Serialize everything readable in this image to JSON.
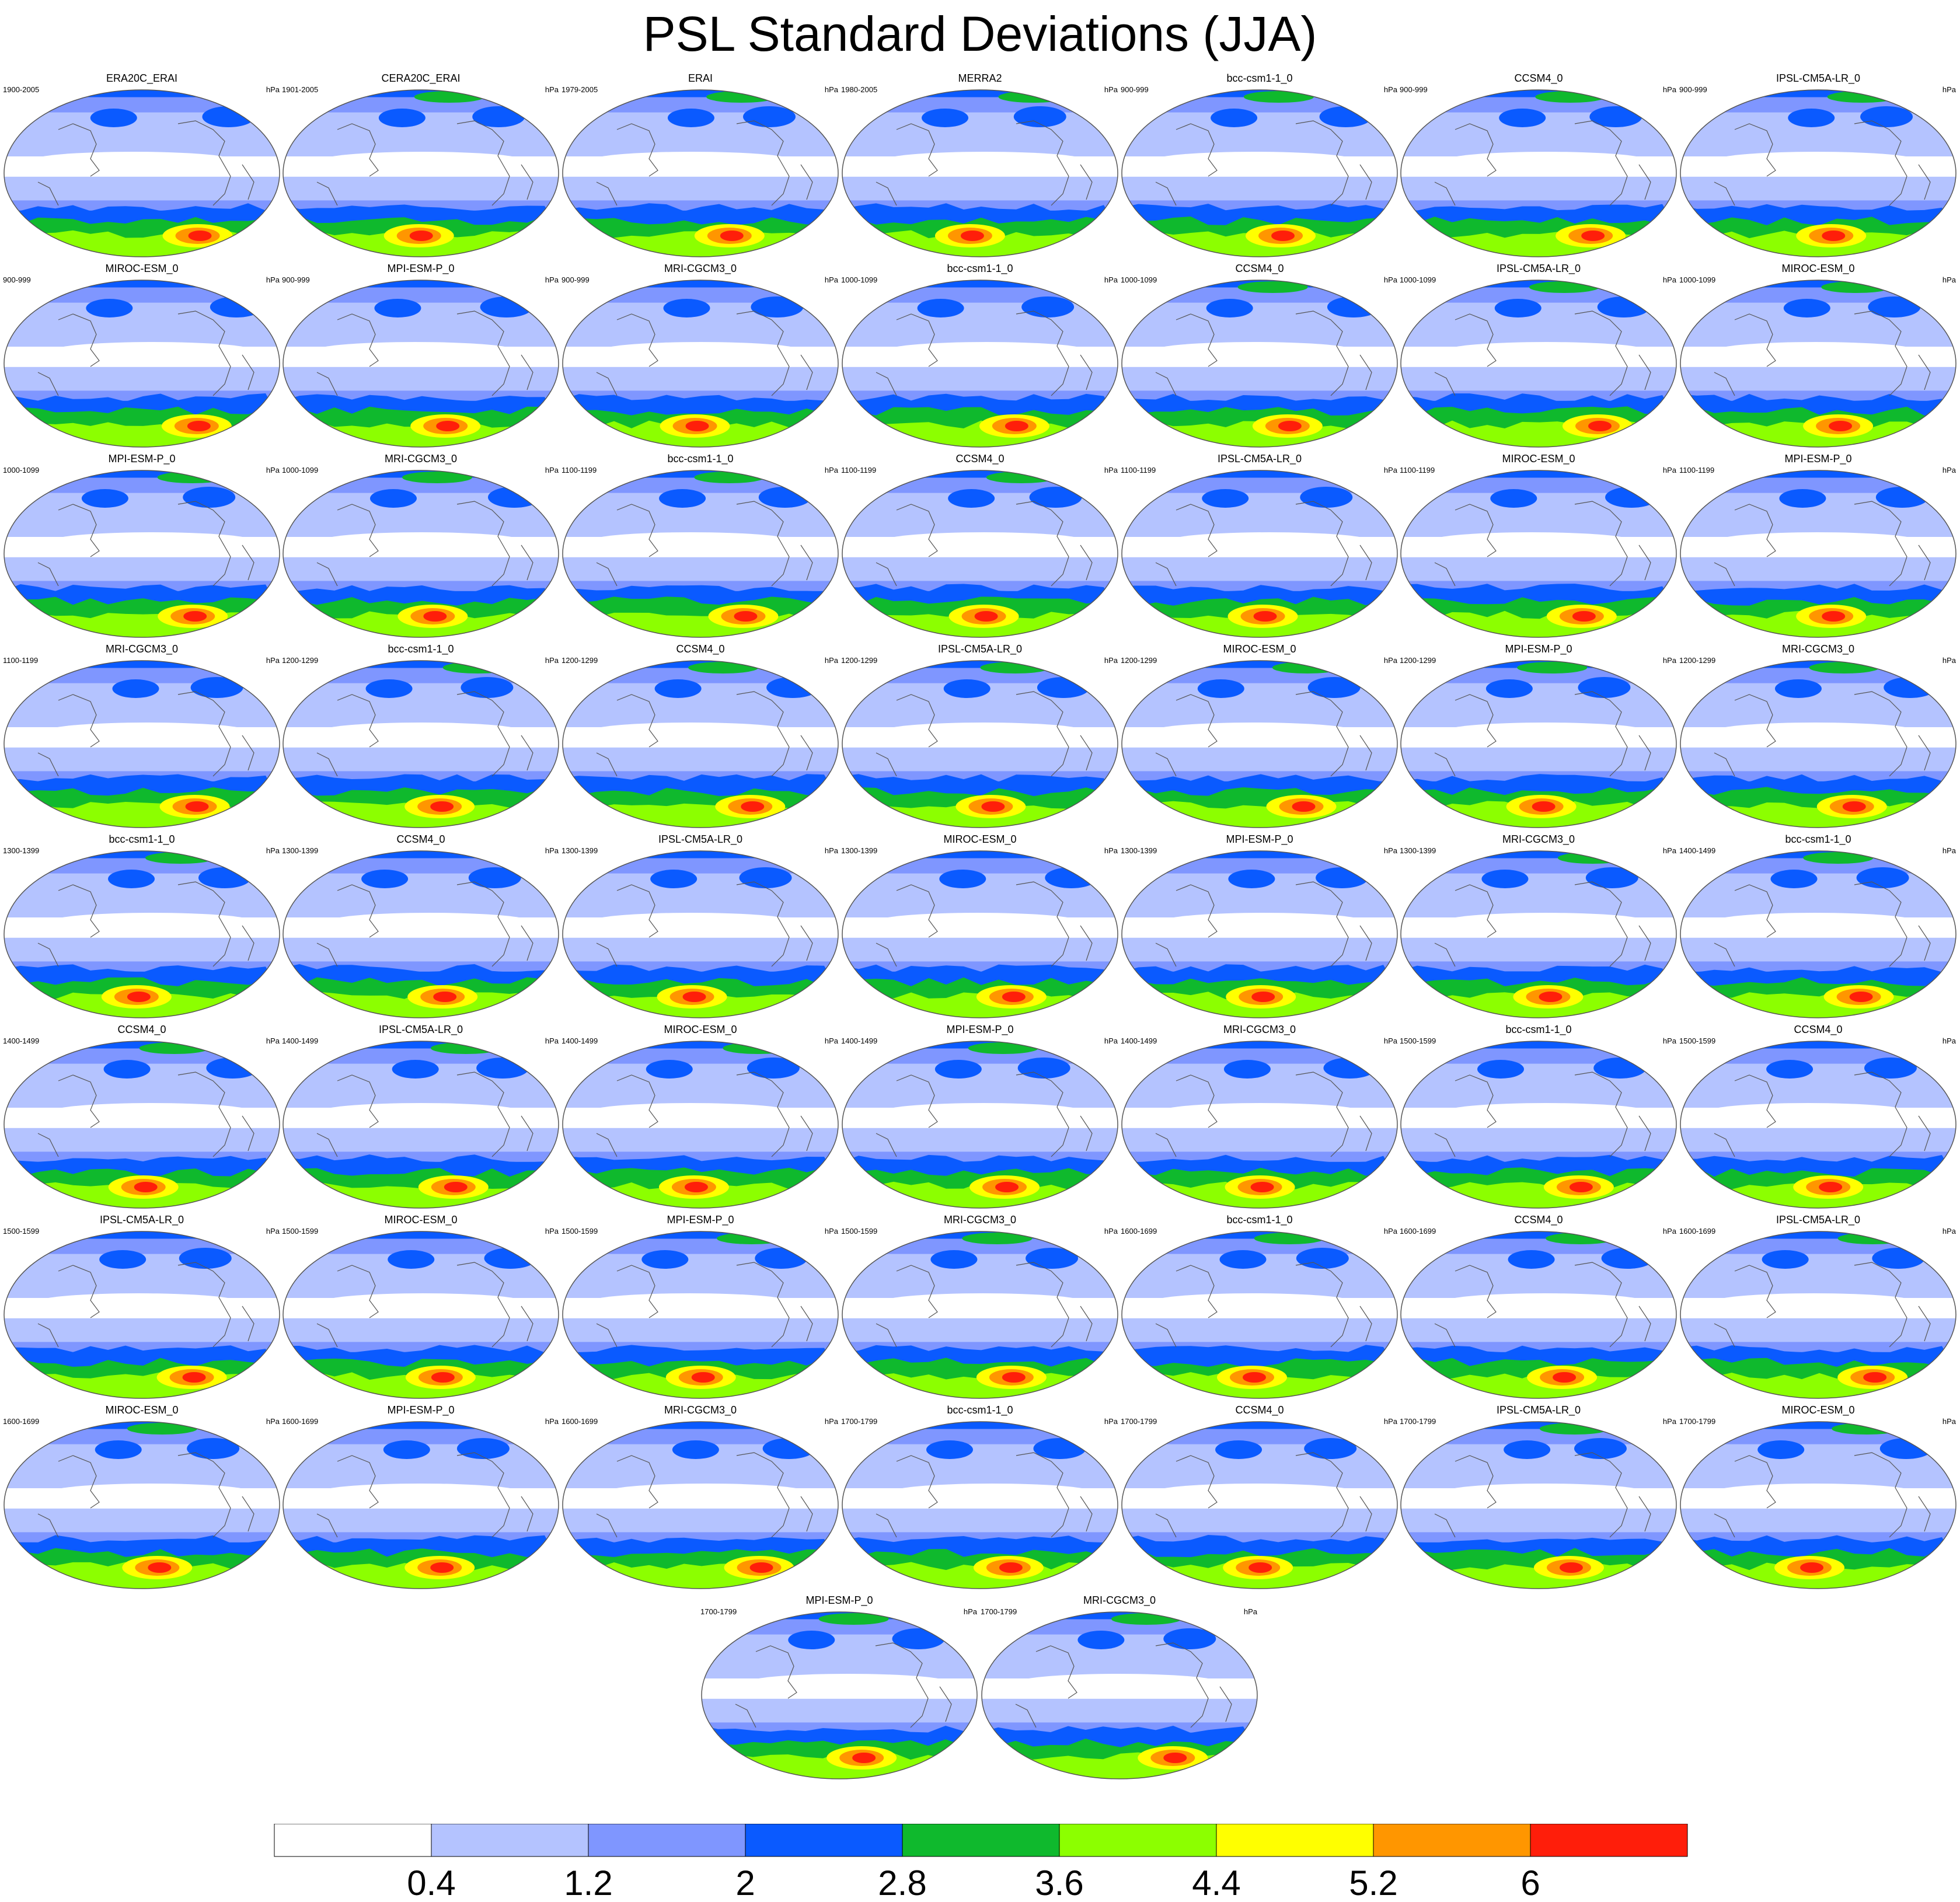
{
  "title": "PSL Standard Deviations (JJA)",
  "units": "hPa",
  "panels": [
    {
      "label": "ERA20C_ERAI",
      "years": "1900-2005"
    },
    {
      "label": "CERA20C_ERAI",
      "years": "1901-2005"
    },
    {
      "label": "ERAI",
      "years": "1979-2005"
    },
    {
      "label": "MERRA2",
      "years": "1980-2005"
    },
    {
      "label": "bcc-csm1-1_0",
      "years": "900-999"
    },
    {
      "label": "CCSM4_0",
      "years": "900-999"
    },
    {
      "label": "IPSL-CM5A-LR_0",
      "years": "900-999"
    },
    {
      "label": "MIROC-ESM_0",
      "years": "900-999"
    },
    {
      "label": "MPI-ESM-P_0",
      "years": "900-999"
    },
    {
      "label": "MRI-CGCM3_0",
      "years": "900-999"
    },
    {
      "label": "bcc-csm1-1_0",
      "years": "1000-1099"
    },
    {
      "label": "CCSM4_0",
      "years": "1000-1099"
    },
    {
      "label": "IPSL-CM5A-LR_0",
      "years": "1000-1099"
    },
    {
      "label": "MIROC-ESM_0",
      "years": "1000-1099"
    },
    {
      "label": "MPI-ESM-P_0",
      "years": "1000-1099"
    },
    {
      "label": "MRI-CGCM3_0",
      "years": "1000-1099"
    },
    {
      "label": "bcc-csm1-1_0",
      "years": "1100-1199"
    },
    {
      "label": "CCSM4_0",
      "years": "1100-1199"
    },
    {
      "label": "IPSL-CM5A-LR_0",
      "years": "1100-1199"
    },
    {
      "label": "MIROC-ESM_0",
      "years": "1100-1199"
    },
    {
      "label": "MPI-ESM-P_0",
      "years": "1100-1199"
    },
    {
      "label": "MRI-CGCM3_0",
      "years": "1100-1199"
    },
    {
      "label": "bcc-csm1-1_0",
      "years": "1200-1299"
    },
    {
      "label": "CCSM4_0",
      "years": "1200-1299"
    },
    {
      "label": "IPSL-CM5A-LR_0",
      "years": "1200-1299"
    },
    {
      "label": "MIROC-ESM_0",
      "years": "1200-1299"
    },
    {
      "label": "MPI-ESM-P_0",
      "years": "1200-1299"
    },
    {
      "label": "MRI-CGCM3_0",
      "years": "1200-1299"
    },
    {
      "label": "bcc-csm1-1_0",
      "years": "1300-1399"
    },
    {
      "label": "CCSM4_0",
      "years": "1300-1399"
    },
    {
      "label": "IPSL-CM5A-LR_0",
      "years": "1300-1399"
    },
    {
      "label": "MIROC-ESM_0",
      "years": "1300-1399"
    },
    {
      "label": "MPI-ESM-P_0",
      "years": "1300-1399"
    },
    {
      "label": "MRI-CGCM3_0",
      "years": "1300-1399"
    },
    {
      "label": "bcc-csm1-1_0",
      "years": "1400-1499"
    },
    {
      "label": "CCSM4_0",
      "years": "1400-1499"
    },
    {
      "label": "IPSL-CM5A-LR_0",
      "years": "1400-1499"
    },
    {
      "label": "MIROC-ESM_0",
      "years": "1400-1499"
    },
    {
      "label": "MPI-ESM-P_0",
      "years": "1400-1499"
    },
    {
      "label": "MRI-CGCM3_0",
      "years": "1400-1499"
    },
    {
      "label": "bcc-csm1-1_0",
      "years": "1500-1599"
    },
    {
      "label": "CCSM4_0",
      "years": "1500-1599"
    },
    {
      "label": "IPSL-CM5A-LR_0",
      "years": "1500-1599"
    },
    {
      "label": "MIROC-ESM_0",
      "years": "1500-1599"
    },
    {
      "label": "MPI-ESM-P_0",
      "years": "1500-1599"
    },
    {
      "label": "MRI-CGCM3_0",
      "years": "1500-1599"
    },
    {
      "label": "bcc-csm1-1_0",
      "years": "1600-1699"
    },
    {
      "label": "CCSM4_0",
      "years": "1600-1699"
    },
    {
      "label": "IPSL-CM5A-LR_0",
      "years": "1600-1699"
    },
    {
      "label": "MIROC-ESM_0",
      "years": "1600-1699"
    },
    {
      "label": "MPI-ESM-P_0",
      "years": "1600-1699"
    },
    {
      "label": "MRI-CGCM3_0",
      "years": "1600-1699"
    },
    {
      "label": "bcc-csm1-1_0",
      "years": "1700-1799"
    },
    {
      "label": "CCSM4_0",
      "years": "1700-1799"
    },
    {
      "label": "IPSL-CM5A-LR_0",
      "years": "1700-1799"
    },
    {
      "label": "MIROC-ESM_0",
      "years": "1700-1799"
    },
    {
      "label": "MPI-ESM-P_0",
      "years": "1700-1799"
    },
    {
      "label": "MRI-CGCM3_0",
      "years": "1700-1799"
    }
  ],
  "colorbar": {
    "colors": [
      "#ffffff",
      "#b4c3ff",
      "#7f96ff",
      "#0a5aff",
      "#0fb92d",
      "#8cff00",
      "#ffff00",
      "#ff9600",
      "#ff1e0a"
    ],
    "tick_labels": [
      "0.4",
      "1.2",
      "2",
      "2.8",
      "3.6",
      "4.4",
      "5.2",
      "6"
    ]
  }
}
